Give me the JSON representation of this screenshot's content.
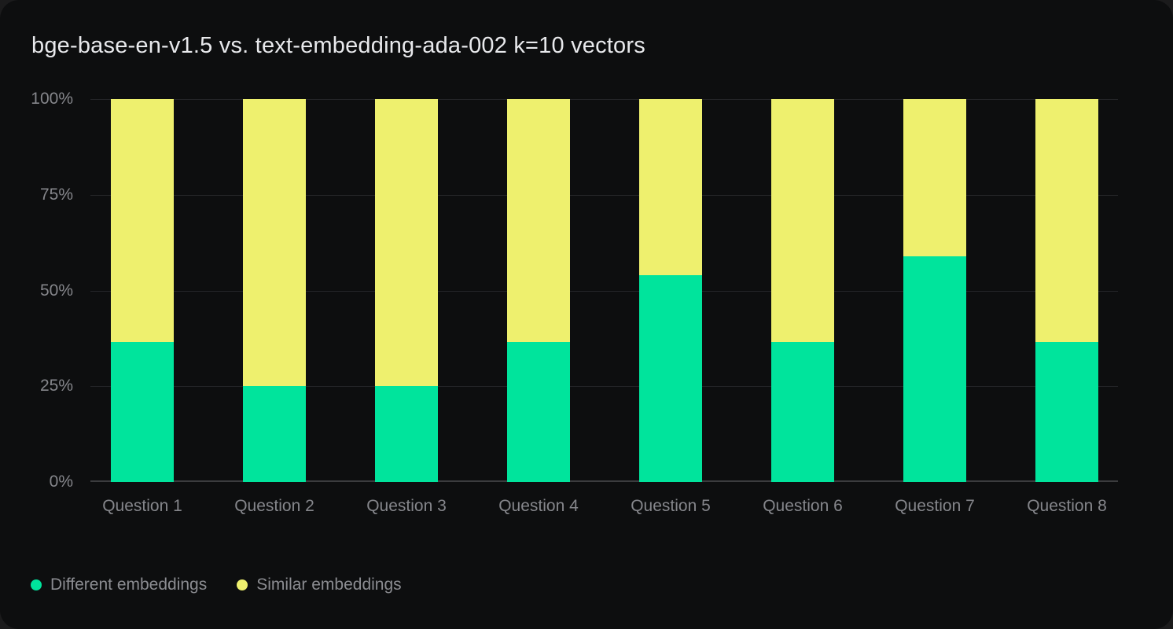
{
  "chart_data": {
    "type": "bar",
    "stacked": true,
    "title": "bge-base-en-v1.5 vs. text-embedding-ada-002 k=10 vectors",
    "categories": [
      "Question 1",
      "Question 2",
      "Question 3",
      "Question 4",
      "Question 5",
      "Question 6",
      "Question 7",
      "Question 8"
    ],
    "series": [
      {
        "name": "Different embeddings",
        "color": "#00E49C",
        "values": [
          36.5,
          25,
          25,
          36.5,
          54,
          36.5,
          59,
          36.5
        ]
      },
      {
        "name": "Similar embeddings",
        "color": "#EEF06E",
        "values": [
          63.5,
          75,
          75,
          63.5,
          46,
          63.5,
          41,
          63.5
        ]
      }
    ],
    "value_unit": "%",
    "xlabel": "",
    "ylabel": "",
    "ylim": [
      0,
      100
    ],
    "yticks": [
      "0%",
      "25%",
      "50%",
      "75%",
      "100%"
    ],
    "grid": "horizontal",
    "legend_position": "bottom-left"
  },
  "colors": {
    "card_background": "#0D0E0F",
    "page_background": "#1B1B1C",
    "gridline": "#242528",
    "axis_line": "#3B3C3E",
    "title_text": "#E8E9EC",
    "axis_text": "#85868B",
    "legend_text": "#8B8C91"
  }
}
